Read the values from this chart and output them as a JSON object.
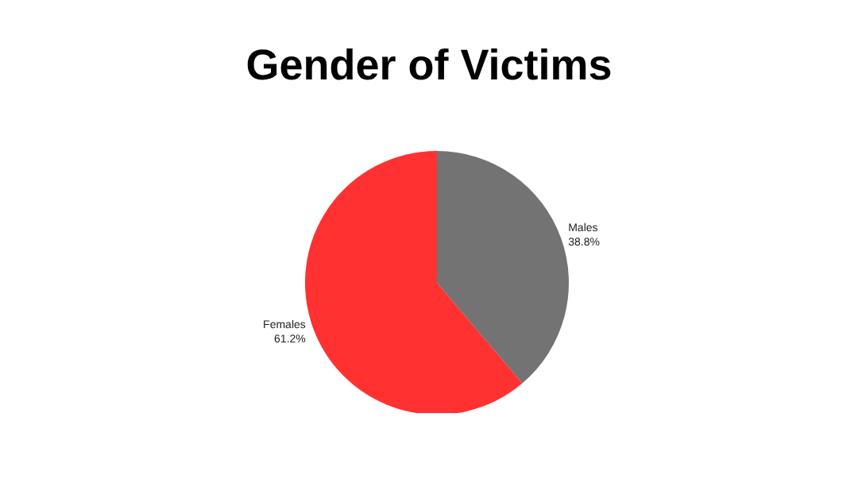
{
  "chart_data": {
    "type": "pie",
    "title": "Gender of Victims",
    "categories": [
      "Males",
      "Females"
    ],
    "values": [
      38.8,
      61.2
    ],
    "colors": [
      "#737373",
      "#ff3131"
    ],
    "value_labels": [
      "38.8%",
      "61.2%"
    ],
    "legend": false
  }
}
